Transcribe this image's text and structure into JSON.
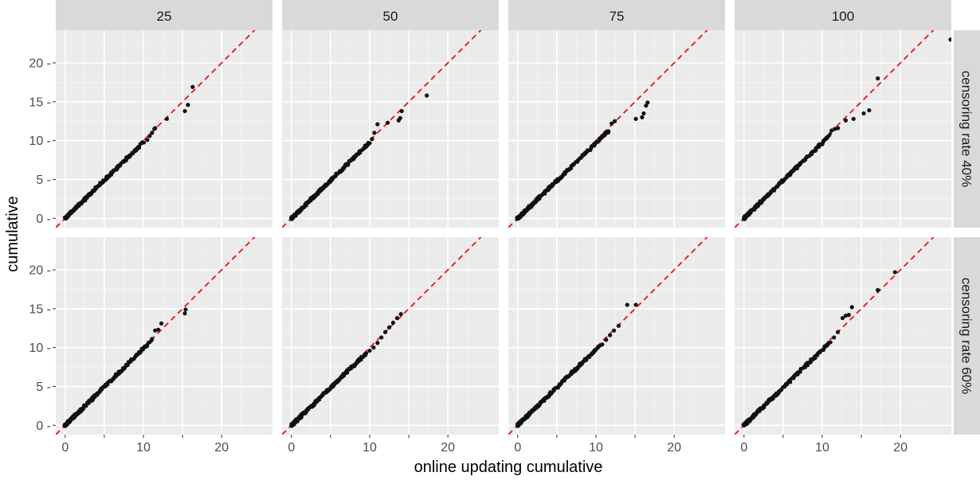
{
  "chart_data": {
    "type": "scatter",
    "xlabel": "online updating cumulative",
    "ylabel": "cumulative",
    "xlim": [
      -1.2,
      26.5
    ],
    "ylim": [
      -1.2,
      24.2
    ],
    "x_ticks": [
      0,
      5,
      10,
      15,
      20
    ],
    "x_tick_labels": [
      "0",
      "10",
      "20"
    ],
    "x_tick_label_values": [
      0,
      10,
      20
    ],
    "y_ticks": [
      0,
      5,
      10,
      15,
      20
    ],
    "y_tick_labels": [
      "0 -",
      "5 -",
      "10 -",
      "15 -",
      "20 -"
    ],
    "column_labels": [
      "25",
      "50",
      "75",
      "100"
    ],
    "row_labels": [
      "censoring rate 40%",
      "censoring rate 60%"
    ],
    "reference_line": {
      "slope": 1,
      "intercept": 0,
      "style": "dashed",
      "color": "#ee1111"
    },
    "point_color": "#111111",
    "grid": true,
    "panels": [
      {
        "col": "25",
        "row": "censoring rate 40%",
        "dense_max": 10.0,
        "dense_offset": -0.2,
        "outliers": [
          [
            10.5,
            10.1
          ],
          [
            10.8,
            10.6
          ],
          [
            11.1,
            11.0
          ],
          [
            11.4,
            11.5
          ],
          [
            11.5,
            11.6
          ],
          [
            13.0,
            12.8
          ],
          [
            15.3,
            13.8
          ],
          [
            15.7,
            14.6
          ],
          [
            16.3,
            16.9
          ]
        ]
      },
      {
        "col": "50",
        "row": "censoring rate 40%",
        "dense_max": 10.0,
        "dense_offset": -0.25,
        "outliers": [
          [
            10.3,
            10.2
          ],
          [
            10.6,
            11.0
          ],
          [
            11.0,
            12.1
          ],
          [
            12.3,
            12.3
          ],
          [
            13.7,
            12.6
          ],
          [
            13.9,
            12.9
          ],
          [
            14.1,
            13.8
          ],
          [
            17.3,
            15.8
          ]
        ]
      },
      {
        "col": "75",
        "row": "censoring rate 40%",
        "dense_max": 11.5,
        "dense_offset": -0.35,
        "outliers": [
          [
            11.6,
            11.2
          ],
          [
            12.0,
            12.2
          ],
          [
            12.4,
            12.5
          ],
          [
            15.1,
            12.8
          ],
          [
            15.9,
            13.0
          ],
          [
            16.1,
            13.5
          ],
          [
            16.4,
            14.5
          ],
          [
            16.6,
            14.9
          ]
        ]
      },
      {
        "col": "100",
        "row": "censoring rate 40%",
        "dense_max": 11.0,
        "dense_offset": -0.3,
        "outliers": [
          [
            11.2,
            11.3
          ],
          [
            11.6,
            11.5
          ],
          [
            12.0,
            11.6
          ],
          [
            13.0,
            12.6
          ],
          [
            14.0,
            12.8
          ],
          [
            15.3,
            13.5
          ],
          [
            16.0,
            13.9
          ],
          [
            17.1,
            18.0
          ],
          [
            26.4,
            23.0
          ]
        ]
      },
      {
        "col": "25",
        "row": "censoring rate 60%",
        "dense_max": 11.0,
        "dense_offset": -0.15,
        "outliers": [
          [
            11.1,
            11.1
          ],
          [
            11.5,
            12.2
          ],
          [
            11.9,
            12.3
          ],
          [
            12.3,
            13.1
          ],
          [
            15.3,
            14.4
          ],
          [
            15.4,
            14.9
          ]
        ]
      },
      {
        "col": "50",
        "row": "censoring rate 60%",
        "dense_max": 9.5,
        "dense_offset": -0.3,
        "outliers": [
          [
            10.0,
            9.6
          ],
          [
            10.5,
            10.0
          ],
          [
            11.0,
            10.6
          ],
          [
            11.5,
            11.3
          ],
          [
            12.0,
            12.0
          ],
          [
            12.5,
            12.6
          ],
          [
            13.0,
            13.2
          ],
          [
            13.5,
            13.8
          ],
          [
            14.0,
            14.3
          ]
        ]
      },
      {
        "col": "75",
        "row": "censoring rate 60%",
        "dense_max": 10.5,
        "dense_offset": -0.25,
        "outliers": [
          [
            10.8,
            10.4
          ],
          [
            11.3,
            11.0
          ],
          [
            11.8,
            11.6
          ],
          [
            12.3,
            12.2
          ],
          [
            12.9,
            12.8
          ],
          [
            14.0,
            15.5
          ],
          [
            15.1,
            15.5
          ]
        ]
      },
      {
        "col": "100",
        "row": "censoring rate 60%",
        "dense_max": 11.0,
        "dense_offset": -0.3,
        "outliers": [
          [
            11.5,
            11.3
          ],
          [
            12.0,
            12.0
          ],
          [
            12.6,
            13.8
          ],
          [
            13.0,
            14.1
          ],
          [
            13.4,
            14.2
          ],
          [
            13.8,
            15.2
          ],
          [
            17.1,
            17.4
          ],
          [
            19.3,
            19.7
          ]
        ]
      }
    ]
  }
}
